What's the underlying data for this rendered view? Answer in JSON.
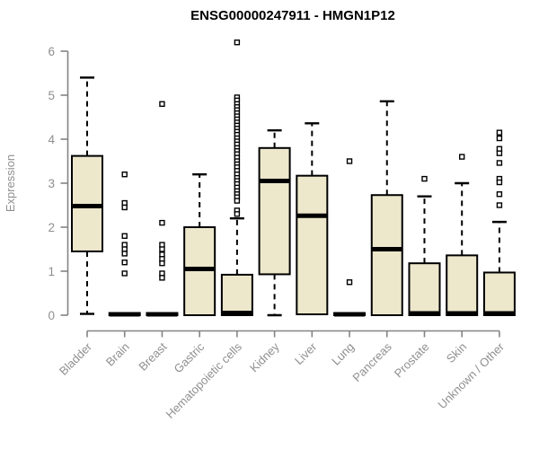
{
  "chart_data": {
    "type": "boxplot",
    "title": "ENSG00000247911 - HMGN1P12",
    "ylabel": "Expression",
    "xlabel": "",
    "ylim": [
      0,
      6.3
    ],
    "yticks": [
      0,
      1,
      2,
      3,
      4,
      5,
      6
    ],
    "grid": false,
    "legend": "none",
    "categories": [
      "Bladder",
      "Brain",
      "Breast",
      "Gastric",
      "Hematopoietic cells",
      "Kidney",
      "Liver",
      "Lung",
      "Pancreas",
      "Prostate",
      "Skin",
      "Unknown / Other"
    ],
    "series": [
      {
        "name": "Bladder",
        "low": 0.03,
        "q1": 1.45,
        "median": 2.48,
        "q3": 3.62,
        "high": 5.4,
        "outliers": []
      },
      {
        "name": "Brain",
        "low": 0,
        "q1": 0,
        "median": 0.02,
        "q3": 0.05,
        "high": 0.05,
        "outliers": [
          3.2,
          2.55,
          2.45,
          1.8,
          1.6,
          1.5,
          1.4,
          1.2,
          0.95
        ]
      },
      {
        "name": "Breast",
        "low": 0,
        "q1": 0,
        "median": 0.02,
        "q3": 0.05,
        "high": 0.05,
        "outliers": [
          4.8,
          2.1,
          1.6,
          1.5,
          1.38,
          1.28,
          1.18,
          0.95,
          0.85
        ]
      },
      {
        "name": "Gastric",
        "low": 0,
        "q1": 0,
        "median": 1.05,
        "q3": 2.0,
        "high": 3.2,
        "outliers": []
      },
      {
        "name": "Hematopoietic cells",
        "low": 0,
        "q1": 0,
        "median": 0.05,
        "q3": 0.92,
        "high": 2.2,
        "outliers": [
          6.2,
          4.95,
          4.88,
          4.8,
          4.73,
          4.66,
          4.59,
          4.52,
          4.45,
          4.38,
          4.31,
          4.24,
          4.17,
          4.1,
          4.02,
          3.95,
          3.88,
          3.8,
          3.73,
          3.66,
          3.58,
          3.5,
          3.43,
          3.36,
          3.28,
          3.2,
          3.12,
          3.05,
          2.98,
          2.9,
          2.82,
          2.75,
          2.68,
          2.6,
          2.38,
          2.3
        ]
      },
      {
        "name": "Kidney",
        "low": 0,
        "q1": 0.93,
        "median": 3.05,
        "q3": 3.8,
        "high": 4.2,
        "outliers": []
      },
      {
        "name": "Liver",
        "low": 0.02,
        "q1": 0.02,
        "median": 2.26,
        "q3": 3.17,
        "high": 4.36,
        "outliers": []
      },
      {
        "name": "Lung",
        "low": 0,
        "q1": 0,
        "median": 0.02,
        "q3": 0.05,
        "high": 0.05,
        "outliers": [
          3.5,
          0.75
        ]
      },
      {
        "name": "Pancreas",
        "low": 0,
        "q1": 0,
        "median": 1.5,
        "q3": 2.73,
        "high": 4.86,
        "outliers": []
      },
      {
        "name": "Prostate",
        "low": 0,
        "q1": 0,
        "median": 0.04,
        "q3": 1.18,
        "high": 2.7,
        "outliers": [
          3.1
        ]
      },
      {
        "name": "Skin",
        "low": 0,
        "q1": 0,
        "median": 0.04,
        "q3": 1.36,
        "high": 3.0,
        "outliers": [
          3.6
        ]
      },
      {
        "name": "Unknown / Other",
        "low": 0,
        "q1": 0,
        "median": 0.04,
        "q3": 0.97,
        "high": 2.12,
        "outliers": [
          4.15,
          4.02,
          3.78,
          3.68,
          3.46,
          3.1,
          3.02,
          2.75,
          2.5
        ]
      }
    ],
    "colors": {
      "box_fill": "#ede7cc",
      "box_border": "#000000",
      "median": "#000000",
      "whisker": "#000000",
      "axis": "#848484",
      "tick_label": "#8f8f8f",
      "title": "#000000"
    }
  }
}
